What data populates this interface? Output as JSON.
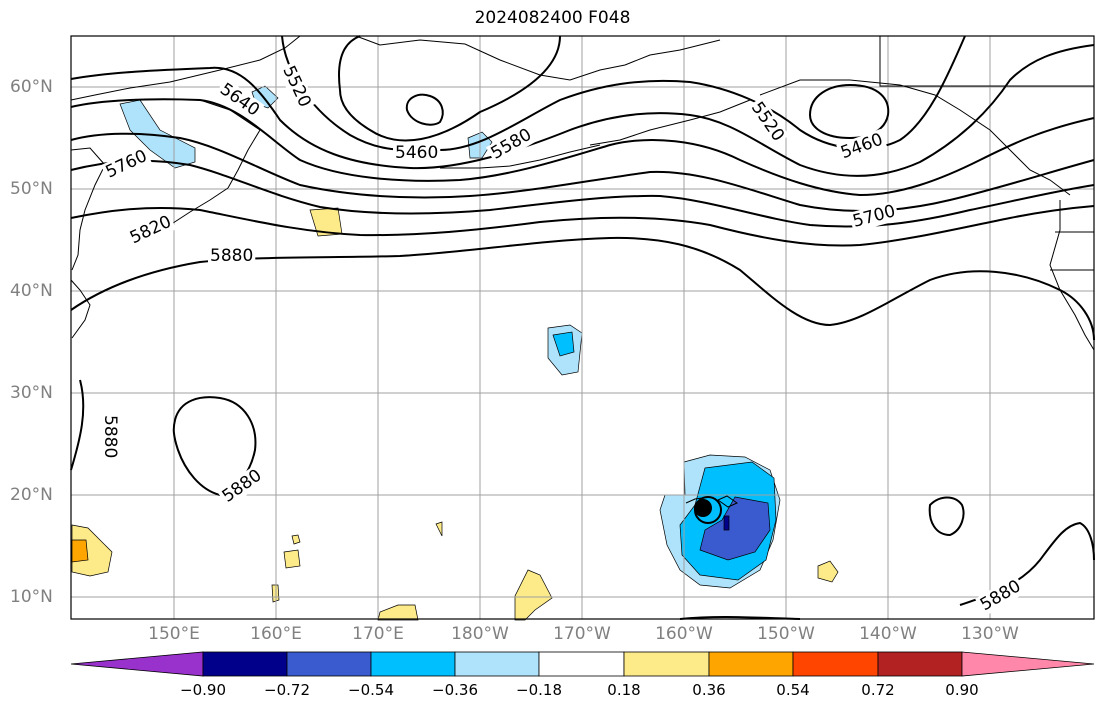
{
  "title": "2024082400 F048",
  "lat_labels": [
    "60°N",
    "50°N",
    "40°N",
    "30°N",
    "20°N",
    "10°N"
  ],
  "lon_labels": [
    "150°E",
    "160°E",
    "170°E",
    "180°W",
    "170°W",
    "160°W",
    "150°W",
    "140°W",
    "130°W"
  ],
  "contour_labels": [
    "5460",
    "5460",
    "5520",
    "5520",
    "5580",
    "5640",
    "5700",
    "5760",
    "5820",
    "5880",
    "5880",
    "5880",
    "5880"
  ],
  "colorbar": {
    "ticks": [
      "−0.90",
      "−0.72",
      "−0.54",
      "−0.36",
      "−0.18",
      "0.18",
      "0.36",
      "0.54",
      "0.72",
      "0.90"
    ],
    "colors": [
      "#9932cc",
      "#00008b",
      "#3a5bcf",
      "#00bfff",
      "#aee3fb",
      "#ffffff",
      "#fdea89",
      "#ffa500",
      "#ff4500",
      "#b22222",
      "#ff88aa"
    ]
  }
}
